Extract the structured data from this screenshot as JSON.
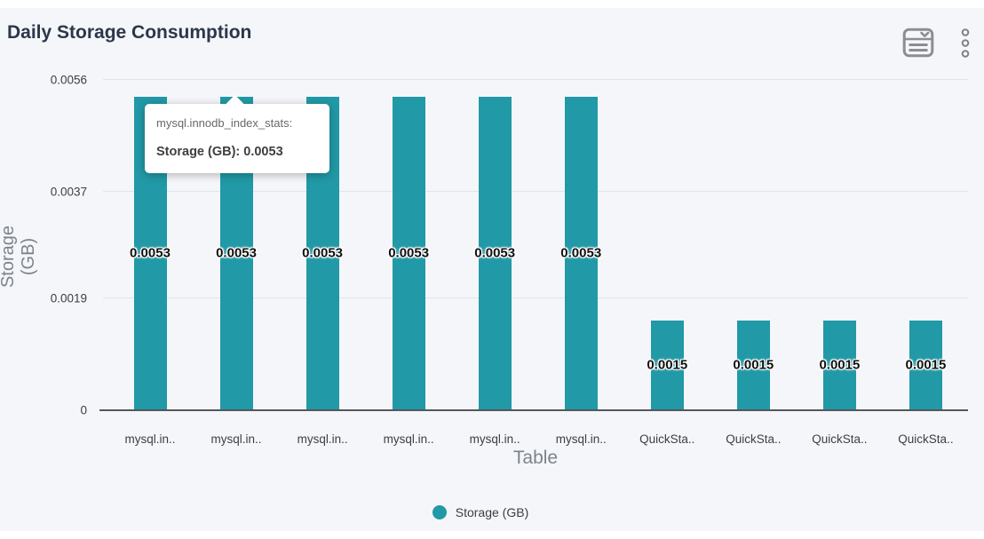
{
  "header": {
    "title": "Daily Storage Consumption"
  },
  "toolbar": {
    "table_menu_icon": "table-select-icon",
    "more_menu_icon": "kebab-menu-icon"
  },
  "chart_data": {
    "type": "bar",
    "title": "Daily Storage Consumption",
    "xlabel": "Table",
    "ylabel": "Storage (GB)",
    "categories": [
      "mysql.in..",
      "mysql.in..",
      "mysql.in..",
      "mysql.in..",
      "mysql.in..",
      "mysql.in..",
      "QuickSta..",
      "QuickSta..",
      "QuickSta..",
      "QuickSta.."
    ],
    "values": [
      0.0053,
      0.0053,
      0.0053,
      0.0053,
      0.0053,
      0.0053,
      0.0015,
      0.0015,
      0.0015,
      0.0015
    ],
    "value_labels": [
      "0.0053",
      "0.0053",
      "0.0053",
      "0.0053",
      "0.0053",
      "0.0053",
      "0.0015",
      "0.0015",
      "0.0015",
      "0.0015"
    ],
    "ylim": [
      0,
      0.0056
    ],
    "yticks": [
      {
        "label": "0.0056",
        "value": 0.0056
      },
      {
        "label": "0.0037",
        "value": 0.0037
      },
      {
        "label": "0.0019",
        "value": 0.0019
      },
      {
        "label": "0",
        "value": 0
      }
    ],
    "grid": true,
    "legend": [
      {
        "label": "Storage (GB)",
        "color": "#2199a6"
      }
    ],
    "legend_position": "bottom",
    "bar_color": "#2199a6"
  },
  "tooltip": {
    "title": "mysql.innodb_index_stats:",
    "value_line": "Storage (GB): 0.0053"
  },
  "colors": {
    "bar": "#2199a6",
    "background": "#f5f6fa",
    "title_text": "#2b3749",
    "axis_title": "#7b848e",
    "tick_text": "#3e3e3e",
    "gridline": "#dfe4ef",
    "baseline": "#54575b",
    "icon": "#8a8e93",
    "tooltip_title_text": "#686868",
    "tooltip_value_text": "#3f3f3f"
  }
}
